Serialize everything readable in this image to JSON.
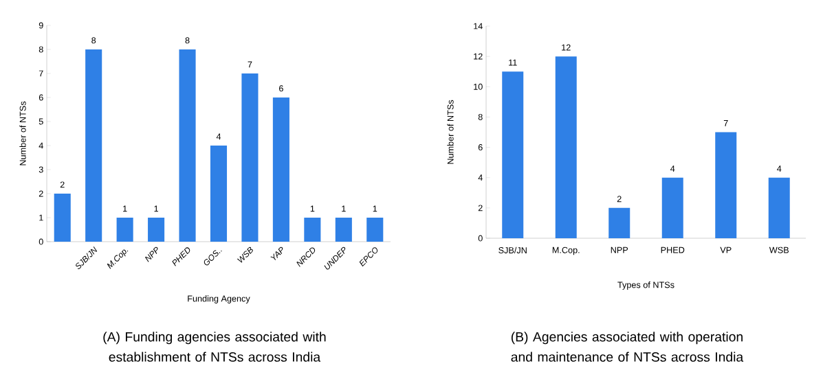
{
  "chart_data": [
    {
      "type": "bar",
      "categories": [
        null,
        "SJB/JN",
        "M.Cop.",
        "NPP",
        "PHED",
        "GOS..",
        "WSB",
        "YAP",
        "NRCD",
        "UNDEP",
        "EPCO"
      ],
      "values": [
        2,
        8,
        1,
        1,
        8,
        4,
        7,
        6,
        1,
        1,
        1
      ],
      "color": "#2f80e6",
      "ylim": [
        0,
        9
      ],
      "yticks": [
        0,
        1,
        2,
        3,
        4,
        5,
        6,
        7,
        8,
        9
      ],
      "xlabel": "Funding Agency",
      "ylabel": "Number of NTSs",
      "data_labels": true,
      "grid": false,
      "annotations": [
        "(A) Funding agencies associated with establishment of NTSs across India"
      ]
    },
    {
      "type": "bar",
      "categories": [
        "SJB/JN",
        "M.Cop.",
        "NPP",
        "PHED",
        "VP",
        "WSB"
      ],
      "values": [
        11,
        12,
        2,
        4,
        7,
        4
      ],
      "color": "#2f80e6",
      "ylim": [
        0,
        14
      ],
      "yticks": [
        0,
        2,
        4,
        6,
        8,
        10,
        12,
        14
      ],
      "xlabel": "Types of NTSs",
      "ylabel": "Number of NTSs",
      "data_labels": true,
      "grid": false,
      "annotations": [
        "(B) Agencies associated with operation and maintenance of NTSs across India"
      ]
    }
  ]
}
